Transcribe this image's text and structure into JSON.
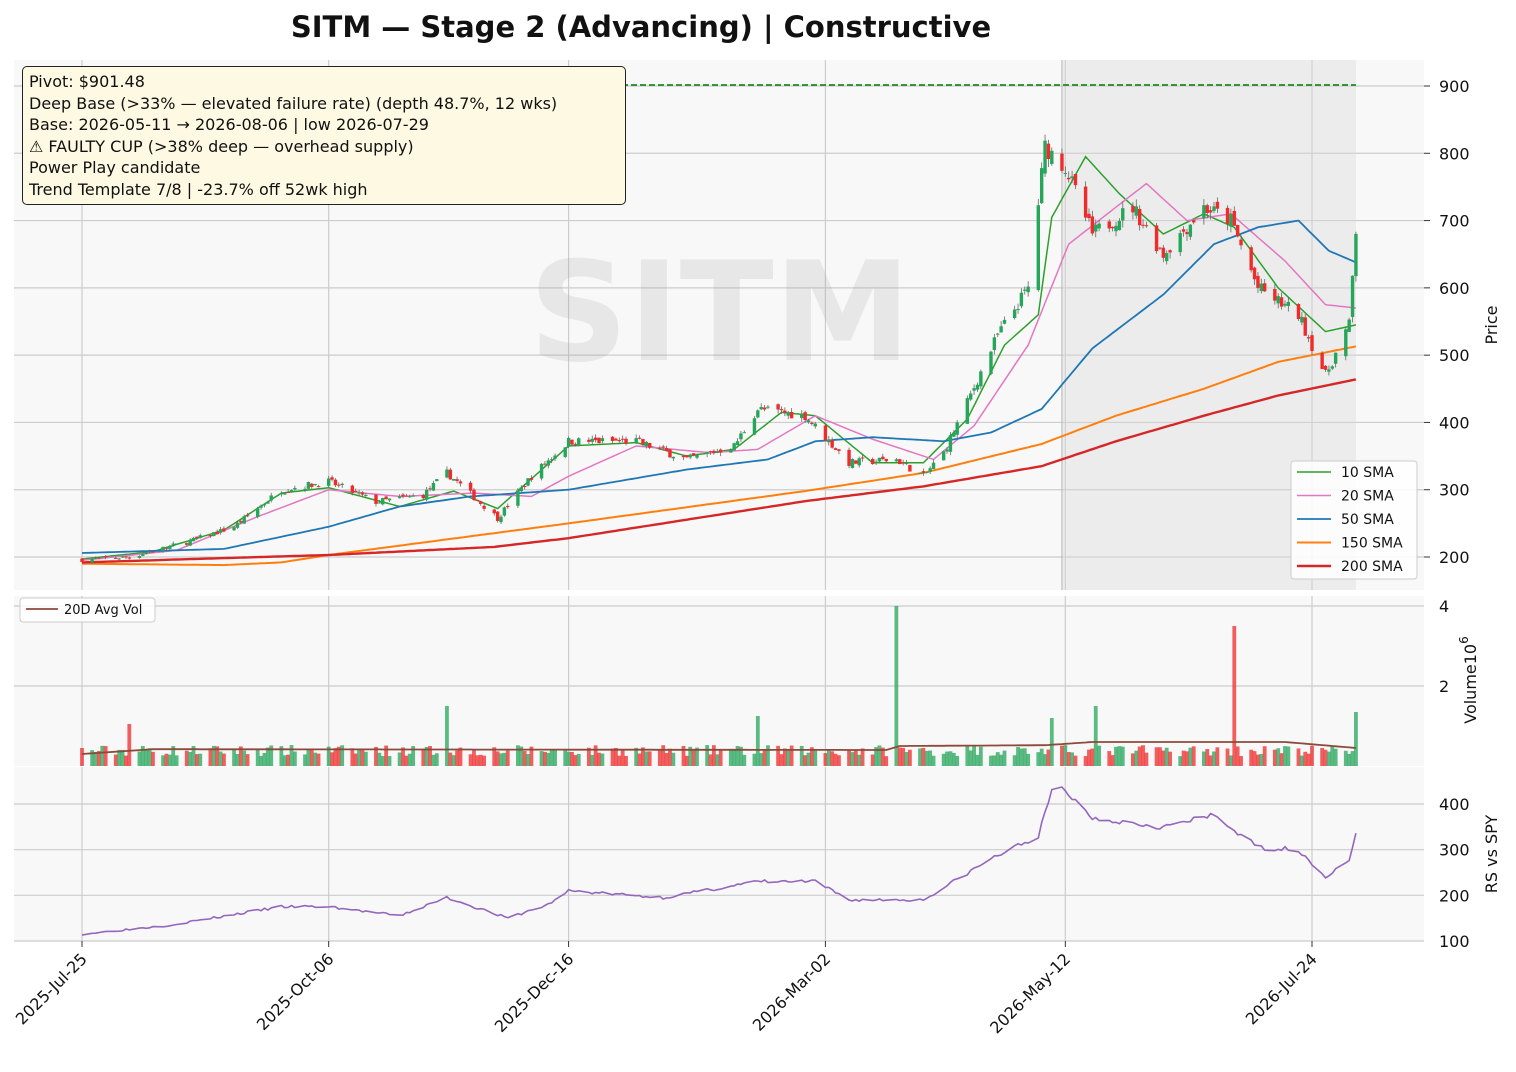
{
  "title": "SITM  —  Stage 2 (Advancing)  |  Constructive",
  "watermark": "SITM",
  "annotations": [
    "Pivot: $901.48",
    "Deep Base (>33% — elevated failure rate)  (depth 48.7%, 12 wks)",
    "Base: 2026-05-11 → 2026-08-06  |  low 2026-07-29",
    "⚠ FAULTY CUP (>38% deep — overhead supply)",
    "Power Play candidate",
    "Trend Template 7/8  |  -23.7% off 52wk high"
  ],
  "colors": {
    "up": "#26a65b",
    "down": "#ef2b2b",
    "sma10": "#2ca02c",
    "sma20": "#e377c2",
    "sma50": "#1f77b4",
    "sma150": "#ff7f0e",
    "sma200": "#d62728",
    "avgvol": "#8c4a3a",
    "rs": "#9467bd",
    "pivot": "#007a00",
    "base_shade": "#d9d9d9"
  },
  "chart_data": [
    {
      "type": "candlestick",
      "ylabel": "Price",
      "ylim": [
        140,
        930
      ],
      "yticks": [
        200,
        300,
        400,
        500,
        600,
        700,
        800,
        900
      ],
      "xlim": [
        "2025-07-11",
        "2026-08-21"
      ],
      "xticks": [
        "2025-Jul-25",
        "2025-Oct-06",
        "2025-Dec-16",
        "2026-Mar-02",
        "2026-May-12",
        "2026-Jul-24"
      ],
      "pivot": 901.48,
      "pivot_range": [
        "2025-07-25",
        "2026-08-06"
      ],
      "base_range": [
        "2026-05-11",
        "2026-08-06"
      ],
      "grid": true,
      "legend_position": "bottom-right",
      "legend": [
        "10 SMA",
        "20 SMA",
        "50 SMA",
        "150 SMA",
        "200 SMA"
      ],
      "price_keypoints": [
        [
          "2025-07-25",
          196
        ],
        [
          "2025-08-08",
          200
        ],
        [
          "2025-08-25",
          222
        ],
        [
          "2025-09-08",
          245
        ],
        [
          "2025-09-22",
          300
        ],
        [
          "2025-10-06",
          312
        ],
        [
          "2025-10-20",
          282
        ],
        [
          "2025-11-03",
          292
        ],
        [
          "2025-11-10",
          325
        ],
        [
          "2025-11-25",
          258
        ],
        [
          "2025-12-05",
          320
        ],
        [
          "2025-12-16",
          372
        ],
        [
          "2026-01-05",
          372
        ],
        [
          "2026-01-20",
          345
        ],
        [
          "2026-02-03",
          365
        ],
        [
          "2026-02-10",
          420
        ],
        [
          "2026-02-24",
          410
        ],
        [
          "2026-03-09",
          340
        ],
        [
          "2026-03-23",
          345
        ],
        [
          "2026-03-31",
          320
        ],
        [
          "2026-04-06",
          355
        ],
        [
          "2026-04-13",
          430
        ],
        [
          "2026-04-22",
          530
        ],
        [
          "2026-05-01",
          600
        ],
        [
          "2026-05-06",
          810
        ],
        [
          "2026-05-12",
          780
        ],
        [
          "2026-05-20",
          680
        ],
        [
          "2026-06-01",
          720
        ],
        [
          "2026-06-10",
          650
        ],
        [
          "2026-06-22",
          720
        ],
        [
          "2026-06-30",
          700
        ],
        [
          "2026-07-08",
          600
        ],
        [
          "2026-07-20",
          560
        ],
        [
          "2026-07-28",
          470
        ],
        [
          "2026-08-04",
          545
        ],
        [
          "2026-08-06",
          685
        ]
      ],
      "sma": {
        "10": [
          [
            "2025-07-25",
            197
          ],
          [
            "2025-08-15",
            208
          ],
          [
            "2025-09-05",
            240
          ],
          [
            "2025-09-22",
            295
          ],
          [
            "2025-10-06",
            303
          ],
          [
            "2025-10-27",
            275
          ],
          [
            "2025-11-12",
            298
          ],
          [
            "2025-11-25",
            272
          ],
          [
            "2025-12-16",
            365
          ],
          [
            "2026-01-05",
            370
          ],
          [
            "2026-01-20",
            350
          ],
          [
            "2026-02-03",
            360
          ],
          [
            "2026-02-17",
            415
          ],
          [
            "2026-02-27",
            410
          ],
          [
            "2026-03-16",
            340
          ],
          [
            "2026-03-31",
            340
          ],
          [
            "2026-04-13",
            405
          ],
          [
            "2026-04-24",
            515
          ],
          [
            "2026-05-04",
            560
          ],
          [
            "2026-05-08",
            705
          ],
          [
            "2026-05-18",
            795
          ],
          [
            "2026-05-28",
            740
          ],
          [
            "2026-06-10",
            680
          ],
          [
            "2026-06-22",
            710
          ],
          [
            "2026-07-01",
            690
          ],
          [
            "2026-07-14",
            600
          ],
          [
            "2026-07-28",
            535
          ],
          [
            "2026-08-06",
            545
          ]
        ],
        "20": [
          [
            "2025-07-25",
            195
          ],
          [
            "2025-08-22",
            210
          ],
          [
            "2025-09-15",
            260
          ],
          [
            "2025-10-06",
            300
          ],
          [
            "2025-10-27",
            290
          ],
          [
            "2025-11-18",
            295
          ],
          [
            "2025-12-05",
            290
          ],
          [
            "2025-12-16",
            320
          ],
          [
            "2026-01-05",
            365
          ],
          [
            "2026-01-27",
            355
          ],
          [
            "2026-02-10",
            360
          ],
          [
            "2026-02-27",
            410
          ],
          [
            "2026-03-16",
            375
          ],
          [
            "2026-04-03",
            345
          ],
          [
            "2026-04-15",
            395
          ],
          [
            "2026-05-01",
            515
          ],
          [
            "2026-05-13",
            665
          ],
          [
            "2026-05-27",
            720
          ],
          [
            "2026-06-05",
            755
          ],
          [
            "2026-06-17",
            700
          ],
          [
            "2026-06-30",
            710
          ],
          [
            "2026-07-16",
            640
          ],
          [
            "2026-07-28",
            575
          ],
          [
            "2026-08-06",
            570
          ]
        ],
        "50": [
          [
            "2025-07-25",
            206
          ],
          [
            "2025-09-05",
            212
          ],
          [
            "2025-10-06",
            245
          ],
          [
            "2025-10-27",
            275
          ],
          [
            "2025-11-17",
            290
          ],
          [
            "2025-12-16",
            300
          ],
          [
            "2026-01-20",
            330
          ],
          [
            "2026-02-13",
            345
          ],
          [
            "2026-02-27",
            372
          ],
          [
            "2026-03-16",
            378
          ],
          [
            "2026-04-06",
            372
          ],
          [
            "2026-04-20",
            385
          ],
          [
            "2026-05-05",
            420
          ],
          [
            "2026-05-20",
            510
          ],
          [
            "2026-06-10",
            590
          ],
          [
            "2026-06-25",
            665
          ],
          [
            "2026-07-08",
            690
          ],
          [
            "2026-07-20",
            700
          ],
          [
            "2026-07-29",
            655
          ],
          [
            "2026-08-06",
            638
          ]
        ],
        "150": [
          [
            "2025-07-25",
            190
          ],
          [
            "2025-09-05",
            188
          ],
          [
            "2025-09-22",
            192
          ],
          [
            "2025-10-06",
            203
          ],
          [
            "2025-12-16",
            250
          ],
          [
            "2026-02-24",
            298
          ],
          [
            "2026-03-31",
            325
          ],
          [
            "2026-05-05",
            368
          ],
          [
            "2026-05-27",
            410
          ],
          [
            "2026-06-22",
            450
          ],
          [
            "2026-07-14",
            490
          ],
          [
            "2026-08-06",
            513
          ]
        ],
        "200": [
          [
            "2025-07-25",
            192
          ],
          [
            "2025-10-06",
            203
          ],
          [
            "2025-11-24",
            215
          ],
          [
            "2025-12-16",
            228
          ],
          [
            "2026-02-24",
            283
          ],
          [
            "2026-03-31",
            305
          ],
          [
            "2026-05-05",
            335
          ],
          [
            "2026-05-27",
            372
          ],
          [
            "2026-06-22",
            410
          ],
          [
            "2026-07-14",
            440
          ],
          [
            "2026-08-06",
            464
          ]
        ]
      }
    },
    {
      "type": "bar",
      "ylabel": "Volume",
      "ylabel_exponent": "10",
      "ylabel_exponent_power": "6",
      "ylim": [
        0,
        4
      ],
      "yticks": [
        2,
        4
      ],
      "legend": [
        "20D Avg Vol"
      ],
      "legend_position": "top-left",
      "base_volume_m": 0.35,
      "spikes": [
        [
          "2025-08-08",
          1.05
        ],
        [
          "2025-11-10",
          1.5
        ],
        [
          "2026-02-10",
          1.25
        ],
        [
          "2026-03-23",
          4.0
        ],
        [
          "2026-05-08",
          1.2
        ],
        [
          "2026-05-21",
          1.5
        ],
        [
          "2026-07-01",
          3.5
        ],
        [
          "2026-08-06",
          1.35
        ]
      ],
      "avg_keypoints": [
        [
          "2025-07-25",
          0.3
        ],
        [
          "2025-08-15",
          0.42
        ],
        [
          "2026-03-20",
          0.4
        ],
        [
          "2026-03-24",
          0.5
        ],
        [
          "2026-05-06",
          0.52
        ],
        [
          "2026-05-20",
          0.6
        ],
        [
          "2026-07-16",
          0.6
        ],
        [
          "2026-08-06",
          0.45
        ]
      ]
    },
    {
      "type": "line",
      "ylabel": "RS vs SPY",
      "ylim": [
        100,
        480
      ],
      "yticks": [
        100,
        200,
        300,
        400
      ],
      "rs_keypoints": [
        [
          "2025-07-25",
          115
        ],
        [
          "2025-08-20",
          135
        ],
        [
          "2025-09-22",
          175
        ],
        [
          "2025-10-06",
          175
        ],
        [
          "2025-10-27",
          155
        ],
        [
          "2025-11-10",
          195
        ],
        [
          "2025-11-28",
          150
        ],
        [
          "2025-12-10",
          180
        ],
        [
          "2025-12-16",
          210
        ],
        [
          "2026-01-13",
          195
        ],
        [
          "2026-02-10",
          230
        ],
        [
          "2026-02-27",
          230
        ],
        [
          "2026-03-09",
          190
        ],
        [
          "2026-03-31",
          190
        ],
        [
          "2026-04-20",
          280
        ],
        [
          "2026-05-04",
          330
        ],
        [
          "2026-05-09",
          450
        ],
        [
          "2026-05-20",
          370
        ],
        [
          "2026-06-10",
          350
        ],
        [
          "2026-06-25",
          375
        ],
        [
          "2026-07-08",
          305
        ],
        [
          "2026-07-20",
          300
        ],
        [
          "2026-07-28",
          240
        ],
        [
          "2026-08-04",
          275
        ],
        [
          "2026-08-06",
          340
        ]
      ]
    }
  ]
}
